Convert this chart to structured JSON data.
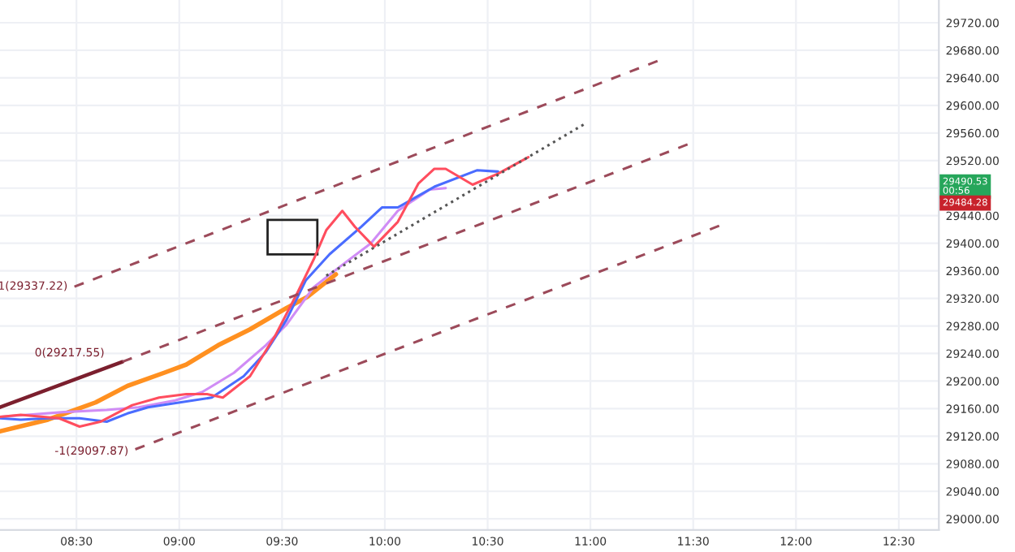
{
  "chart_data": {
    "type": "line",
    "series": [
      {
        "color": "#ff9020",
        "x": [
          8.128,
          8.361,
          8.593,
          8.748,
          8.926,
          9.034,
          9.189,
          9.344,
          9.522,
          9.622,
          9.762
        ],
        "values": [
          29127,
          29144,
          29169,
          29193,
          29212,
          29224,
          29252,
          29275,
          29306,
          29322,
          29355
        ]
      },
      {
        "color": "#d08cf5",
        "x": [
          8.128,
          8.438,
          8.647,
          8.802,
          8.98,
          9.111,
          9.266,
          9.421,
          9.522,
          9.653,
          9.777,
          9.932,
          10.063,
          10.218,
          10.296
        ],
        "values": [
          29148,
          29155,
          29158,
          29162,
          29172,
          29184,
          29212,
          29252,
          29282,
          29336,
          29365,
          29400,
          29447,
          29478,
          29480
        ]
      },
      {
        "color": "#4a6cff",
        "x": [
          8.128,
          8.229,
          8.361,
          8.515,
          8.647,
          8.748,
          8.848,
          9.003,
          9.158,
          9.313,
          9.421,
          9.522,
          9.615,
          9.731,
          9.885,
          9.986,
          10.063,
          10.241,
          10.45,
          10.551
        ],
        "values": [
          29146,
          29144,
          29146,
          29146,
          29141,
          29153,
          29162,
          29169,
          29176,
          29207,
          29242,
          29289,
          29346,
          29384,
          29424,
          29452,
          29452,
          29482,
          29506,
          29504
        ]
      },
      {
        "color": "#ff4d5e",
        "x": [
          8.128,
          8.229,
          8.415,
          8.515,
          8.616,
          8.771,
          8.902,
          9.034,
          9.135,
          9.212,
          9.344,
          9.467,
          9.576,
          9.653,
          9.715,
          9.793,
          9.854,
          9.947,
          10.063,
          10.164,
          10.241,
          10.296,
          10.427,
          10.551,
          10.698
        ],
        "values": [
          29148,
          29151,
          29146,
          29134,
          29141,
          29165,
          29176,
          29181,
          29181,
          29176,
          29207,
          29266,
          29329,
          29376,
          29419,
          29447,
          29424,
          29395,
          29431,
          29487,
          29508,
          29508,
          29485,
          29501,
          29525
        ]
      },
      {
        "color": "#7b1f2e",
        "line_style": "solid",
        "x": [
          8.128,
          8.724
        ],
        "values": [
          29162,
          29228
        ]
      },
      {
        "color": "#9c4a5a",
        "line_style": "dashed",
        "x": [
          8.724,
          11.495
        ],
        "values": [
          29228,
          29546
        ]
      },
      {
        "color": "#9c4a5a",
        "line_style": "dashed",
        "x": [
          8.49,
          11.34
        ],
        "values": [
          29337,
          29666
        ]
      },
      {
        "color": "#9c4a5a",
        "line_style": "dashed",
        "x": [
          8.786,
          11.65
        ],
        "values": [
          29101,
          29428
        ]
      },
      {
        "color": "#555555",
        "line_style": "dotted",
        "x": [
          9.715,
          10.977
        ],
        "values": [
          29353,
          29574
        ]
      }
    ],
    "annotations": [
      {
        "text": "1(29337.22)",
        "x": 8.49,
        "y": 29337.22
      },
      {
        "text": "0(29217.55)",
        "x": 8.724,
        "y": 29217.55
      },
      {
        "text": "-1(29097.87)",
        "x": 8.786,
        "y": 29097.87
      },
      "29490.53\n00:56",
      "29484.28"
    ],
    "xlim": [
      8.128,
      12.695
    ],
    "xticks": [
      {
        "value": 8.5,
        "label": "08:30"
      },
      {
        "value": 9.0,
        "label": "09:00"
      },
      {
        "value": 9.5,
        "label": "09:30"
      },
      {
        "value": 10.0,
        "label": "10:00"
      },
      {
        "value": 10.5,
        "label": "10:30"
      },
      {
        "value": 11.0,
        "label": "11:00"
      },
      {
        "value": 11.5,
        "label": "11:30"
      },
      {
        "value": 12.0,
        "label": "12:00"
      },
      {
        "value": 12.5,
        "label": "12:30"
      }
    ],
    "ylim": [
      28984,
      29753
    ],
    "yticks": [
      {
        "value": 29000,
        "label": "29000.00"
      },
      {
        "value": 29040,
        "label": "29040.00"
      },
      {
        "value": 29080,
        "label": "29080.00"
      },
      {
        "value": 29120,
        "label": "29120.00"
      },
      {
        "value": 29160,
        "label": "29160.00"
      },
      {
        "value": 29200,
        "label": "29200.00"
      },
      {
        "value": 29240,
        "label": "29240.00"
      },
      {
        "value": 29280,
        "label": "29280.00"
      },
      {
        "value": 29320,
        "label": "29320.00"
      },
      {
        "value": 29360,
        "label": "29360.00"
      },
      {
        "value": 29400,
        "label": "29400.00"
      },
      {
        "value": 29440,
        "label": "29440.00"
      },
      {
        "value": 29480,
        "label": null
      },
      {
        "value": 29520,
        "label": "29520.00"
      },
      {
        "value": 29560,
        "label": "29560.00"
      },
      {
        "value": 29600,
        "label": "29600.00"
      },
      {
        "value": 29640,
        "label": "29640.00"
      },
      {
        "value": 29680,
        "label": "29680.00"
      },
      {
        "value": 29720,
        "label": "29720.00"
      }
    ],
    "grid": true,
    "legend": false
  }
}
